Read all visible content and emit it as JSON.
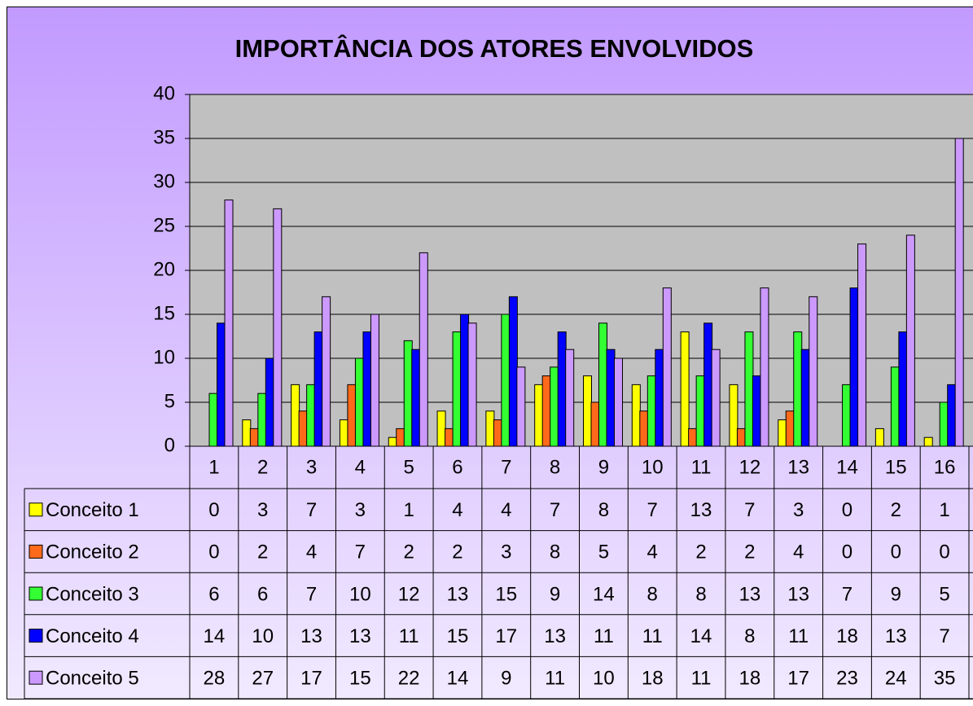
{
  "chart_data": {
    "type": "bar",
    "title": "IMPORTÂNCIA DOS ATORES ENVOLVIDOS",
    "categories": [
      "1",
      "2",
      "3",
      "4",
      "5",
      "6",
      "7",
      "8",
      "9",
      "10",
      "11",
      "12",
      "13",
      "14",
      "15",
      "16"
    ],
    "series": [
      {
        "name": "Conceito 1",
        "color": "#ffff00",
        "values": [
          0,
          3,
          7,
          3,
          1,
          4,
          4,
          7,
          8,
          7,
          13,
          7,
          3,
          0,
          2,
          1
        ]
      },
      {
        "name": "Conceito 2",
        "color": "#ff6a1a",
        "values": [
          0,
          2,
          4,
          7,
          2,
          2,
          3,
          8,
          5,
          4,
          2,
          2,
          4,
          0,
          0,
          0
        ]
      },
      {
        "name": "Conceito 3",
        "color": "#33ff33",
        "values": [
          6,
          6,
          7,
          10,
          12,
          13,
          15,
          9,
          14,
          8,
          8,
          13,
          13,
          7,
          9,
          5
        ]
      },
      {
        "name": "Conceito 4",
        "color": "#0000ff",
        "values": [
          14,
          10,
          13,
          13,
          11,
          15,
          17,
          13,
          11,
          11,
          14,
          8,
          11,
          18,
          13,
          7
        ]
      },
      {
        "name": "Conceito 5",
        "color": "#cc99ff",
        "values": [
          28,
          27,
          17,
          15,
          22,
          14,
          9,
          11,
          10,
          18,
          11,
          18,
          17,
          23,
          24,
          35
        ]
      }
    ],
    "ylim": [
      0,
      40
    ],
    "yticks": [
      0,
      5,
      10,
      15,
      20,
      25,
      30,
      35,
      40
    ],
    "grid": true
  }
}
